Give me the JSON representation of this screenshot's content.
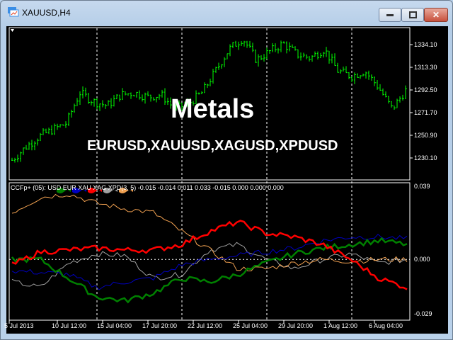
{
  "window": {
    "title": "XAUUSD,H4",
    "buttons": [
      "minimize",
      "maximize",
      "close"
    ]
  },
  "overlay": {
    "heading": "Metals",
    "symbols": "EURUSD,XAUUSD,XAGUSD,XPDUSD"
  },
  "indicator": {
    "label": "CCFp+ (05): USD EUR XAU XAG XPD(3, 5) -0.015 -0.014 0.011 0.033 -0.015 0.000 0.000 0.000"
  },
  "chart_data": [
    {
      "type": "candlestick",
      "symbol": "XAUUSD",
      "timeframe": "H4",
      "candle_color": "#00ff00",
      "y_ticks": [
        "1334.10",
        "1313.30",
        "1292.50",
        "1271.70",
        "1250.90",
        "1230.10"
      ],
      "close_approx": [
        1228,
        1240,
        1250,
        1256,
        1262,
        1290,
        1282,
        1278,
        1288,
        1290,
        1286,
        1288,
        1275,
        1280,
        1290,
        1310,
        1330,
        1340,
        1320,
        1328,
        1335,
        1325,
        1322,
        1330,
        1310,
        1305,
        1310,
        1295,
        1275,
        1292
      ]
    },
    {
      "type": "line",
      "ylim": [
        -0.029,
        0.039
      ],
      "y_ticks": [
        "0.039",
        "0.000",
        "-0.029"
      ],
      "series": [
        {
          "name": "USD",
          "color": "#008000",
          "values": [
            0,
            0,
            -0.01,
            -0.02,
            -0.022,
            -0.018,
            -0.01,
            -0.012,
            -0.008,
            -0.002,
            0.003,
            0.006,
            0.008,
            0.01,
            0.008
          ]
        },
        {
          "name": "EUR",
          "color": "#0000c0",
          "values": [
            -0.006,
            -0.007,
            -0.008,
            -0.015,
            -0.012,
            -0.01,
            -0.003,
            0.0,
            0.002,
            0.004,
            0.006,
            0.01,
            0.012,
            0.012,
            0.011
          ]
        },
        {
          "name": "XAU",
          "color": "#ff0000",
          "values": [
            -0.003,
            0.004,
            0.005,
            0.006,
            0.005,
            0.005,
            0.008,
            0.015,
            0.02,
            0.014,
            0.012,
            0.008,
            0.0,
            -0.01,
            -0.015
          ]
        },
        {
          "name": "XAG",
          "color": "#a0a0a0",
          "values": [
            -0.012,
            -0.015,
            -0.002,
            0.003,
            0.002,
            -0.01,
            -0.008,
            0.005,
            0.008,
            0.0,
            -0.005,
            0.0,
            0.003,
            -0.002,
            0.0
          ]
        },
        {
          "name": "XPD",
          "color": "#f0a050",
          "values": [
            0.025,
            0.033,
            0.035,
            0.03,
            0.027,
            0.025,
            0.015,
            0.005,
            -0.005,
            -0.005,
            -0.002,
            0.0,
            -0.001,
            0.0,
            0.0
          ]
        }
      ]
    }
  ],
  "time_axis": [
    "5 Jul 2013",
    "10 Jul 12:00",
    "15 Jul 04:00",
    "17 Jul 20:00",
    "22 Jul 12:00",
    "25 Jul 04:00",
    "29 Jul 20:00",
    "1 Aug 12:00",
    "6 Aug 04:00"
  ]
}
